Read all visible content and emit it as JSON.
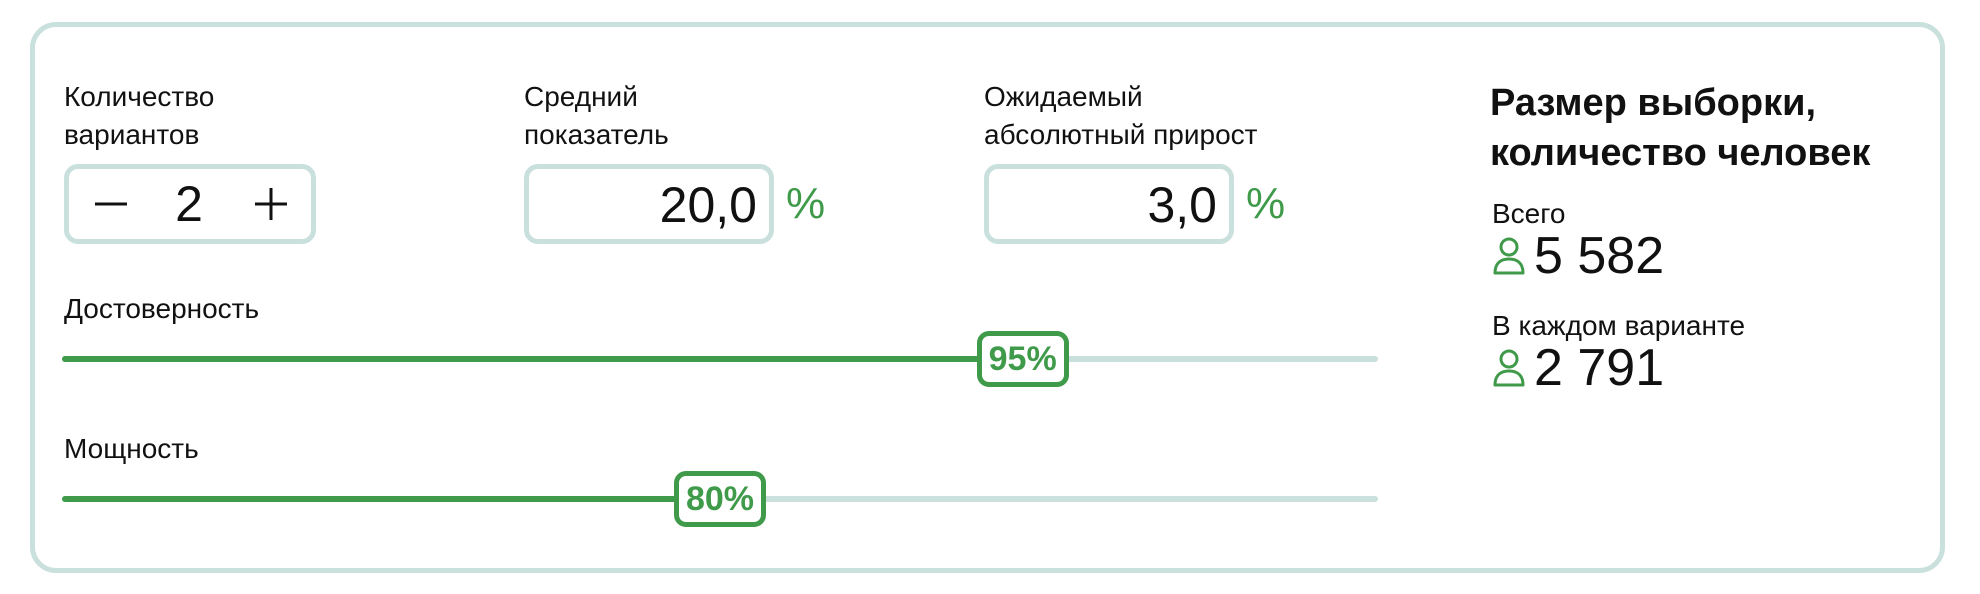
{
  "variants": {
    "label_line1": "Количество",
    "label_line2": "вариантов",
    "value": "2",
    "minus_icon": "minus-icon",
    "plus_icon": "plus-icon"
  },
  "mean": {
    "label_line1": "Средний",
    "label_line2": "показатель",
    "value": "20,0",
    "unit": "%"
  },
  "expected_growth": {
    "label_line1": "Ожидаемый",
    "label_line2": "абсолютный прирост",
    "value": "3,0",
    "unit": "%"
  },
  "confidence": {
    "label": "Достоверность",
    "value_text": "95%",
    "level": 0.73
  },
  "power": {
    "label": "Мощность",
    "value_text": "80%",
    "level": 0.5
  },
  "results": {
    "title_line1": "Размер выборки,",
    "title_line2": "количество человек",
    "total_label": "Всего",
    "total_value": "5 582",
    "per_variant_label": "В каждом варианте",
    "per_variant_value": "2 791",
    "icon": "person-icon"
  },
  "colors": {
    "accent": "#3f9a4a",
    "border": "#c9e0dc",
    "text": "#111111"
  }
}
